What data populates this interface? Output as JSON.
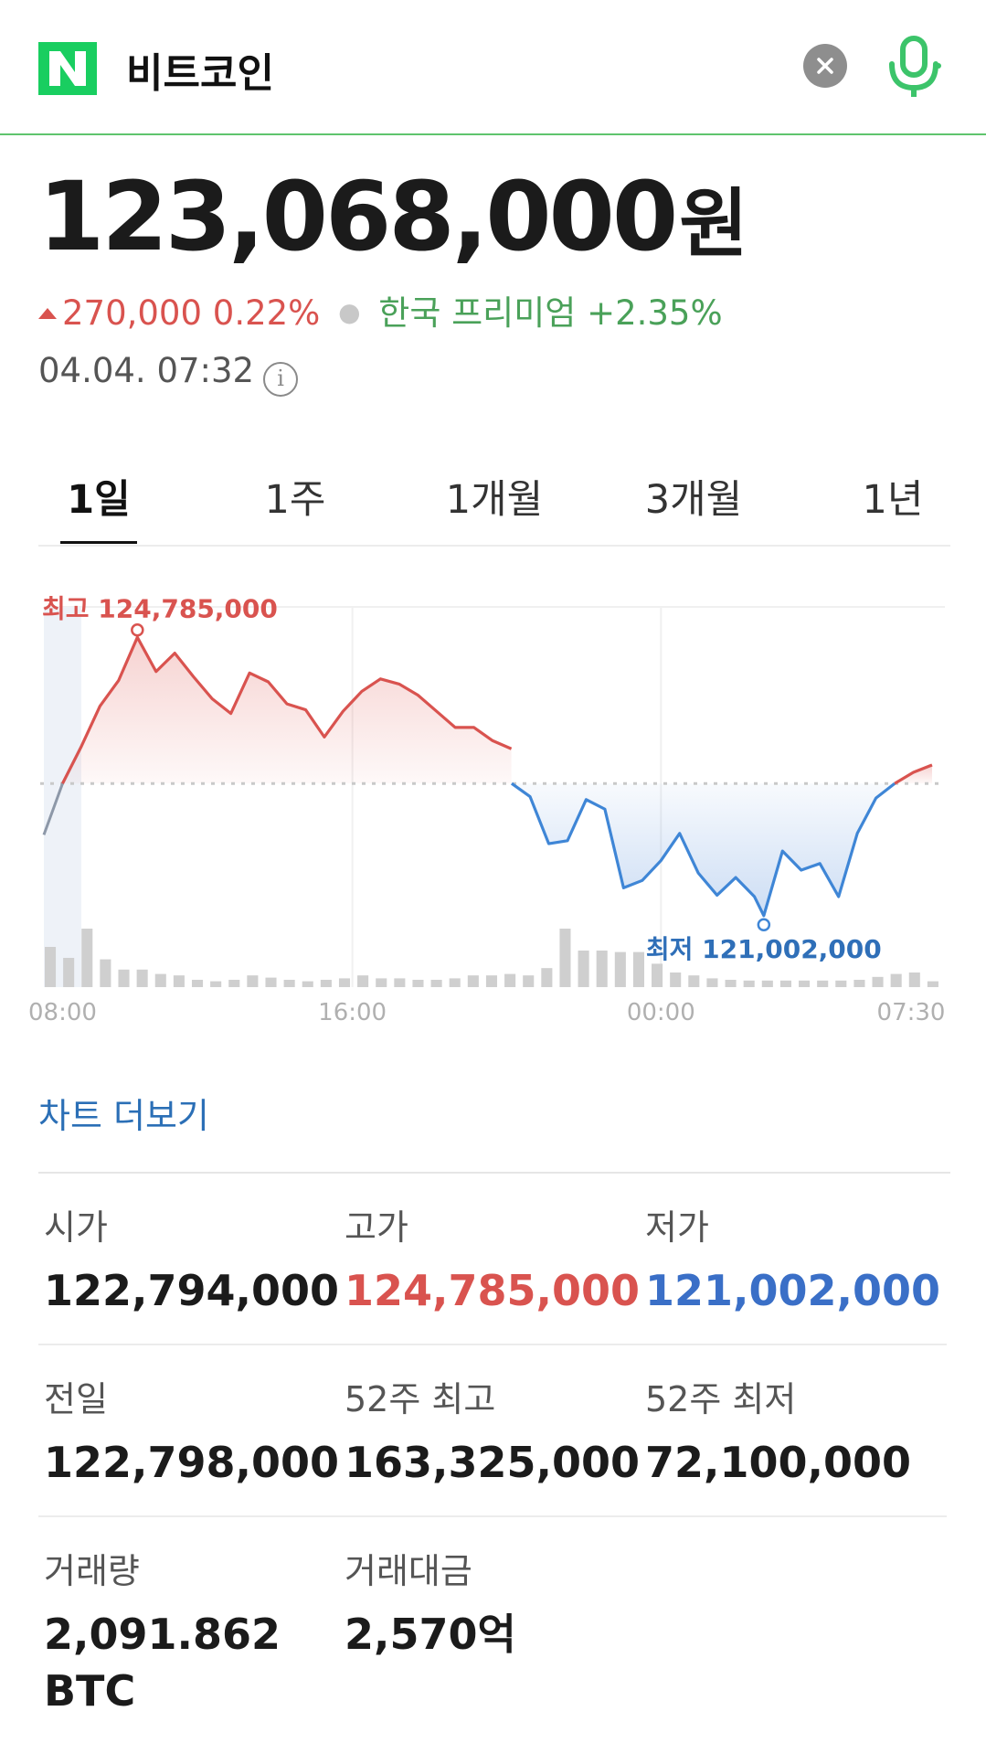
{
  "header": {
    "logo_letter": "N",
    "search_query": "비트코인",
    "brand_color": "#19ce60",
    "clear_icon": "close-icon",
    "mic_icon": "microphone-icon"
  },
  "quote": {
    "price": "123,068,000",
    "unit": "원",
    "change": "270,000",
    "change_pct": "0.22%",
    "premium_label": "한국 프리미엄",
    "premium_value": "+2.35%",
    "timestamp": "04.04. 07:32",
    "up_color": "#d9534f",
    "down_color": "#3a6fc7",
    "premium_color": "#4aa159"
  },
  "tabs": [
    {
      "label": "1일",
      "active": true
    },
    {
      "label": "1주",
      "active": false
    },
    {
      "label": "1개월",
      "active": false
    },
    {
      "label": "3개월",
      "active": false
    },
    {
      "label": "1년",
      "active": false
    }
  ],
  "chart_data": {
    "type": "area",
    "x_ticks": [
      "08:00",
      "16:00",
      "00:00",
      "07:30"
    ],
    "baseline": 122798000,
    "high_label": "최고 124,785,000",
    "low_label": "최저 121,002,000",
    "high": 124785000,
    "low": 121002000,
    "ylim": [
      120900000,
      125000000
    ],
    "price_series": [
      [
        0.0,
        122100000
      ],
      [
        0.6,
        122798000
      ],
      [
        1.2,
        123300000
      ],
      [
        1.8,
        123850000
      ],
      [
        2.4,
        124200000
      ],
      [
        3.0,
        124785000
      ],
      [
        3.6,
        124320000
      ],
      [
        4.2,
        124570000
      ],
      [
        4.8,
        124250000
      ],
      [
        5.4,
        123950000
      ],
      [
        6.0,
        123750000
      ],
      [
        6.6,
        124300000
      ],
      [
        7.2,
        124180000
      ],
      [
        7.8,
        123880000
      ],
      [
        8.4,
        123800000
      ],
      [
        9.0,
        123430000
      ],
      [
        9.6,
        123780000
      ],
      [
        10.2,
        124050000
      ],
      [
        10.8,
        124220000
      ],
      [
        11.4,
        124150000
      ],
      [
        12.0,
        124000000
      ],
      [
        12.6,
        123780000
      ],
      [
        13.2,
        123560000
      ],
      [
        13.8,
        123560000
      ],
      [
        14.4,
        123380000
      ],
      [
        15.0,
        123270000
      ],
      [
        15.01,
        122798000
      ],
      [
        15.6,
        122620000
      ],
      [
        16.2,
        121980000
      ],
      [
        16.8,
        122020000
      ],
      [
        17.4,
        122580000
      ],
      [
        18.0,
        122450000
      ],
      [
        18.6,
        121380000
      ],
      [
        19.2,
        121480000
      ],
      [
        19.8,
        121750000
      ],
      [
        20.4,
        122120000
      ],
      [
        21.0,
        121580000
      ],
      [
        21.6,
        121280000
      ],
      [
        22.2,
        121520000
      ],
      [
        22.8,
        121260000
      ],
      [
        23.1,
        121002000
      ],
      [
        23.7,
        121880000
      ],
      [
        24.3,
        121620000
      ],
      [
        24.9,
        121710000
      ],
      [
        25.5,
        121260000
      ],
      [
        26.1,
        122120000
      ],
      [
        26.7,
        122600000
      ],
      [
        27.3,
        122798000
      ],
      [
        27.9,
        122950000
      ],
      [
        28.5,
        123050000
      ]
    ],
    "volume": [
      55,
      40,
      80,
      38,
      24,
      24,
      18,
      16,
      10,
      8,
      10,
      16,
      13,
      10,
      8,
      10,
      12,
      16,
      12,
      12,
      10,
      10,
      12,
      16,
      16,
      18,
      16,
      26,
      80,
      50,
      50,
      48,
      48,
      32,
      20,
      16,
      12,
      10,
      9,
      9,
      9,
      9,
      9,
      9,
      10,
      14,
      18,
      20,
      8
    ],
    "x_domain": [
      0,
      28.5
    ]
  },
  "chart_more": "차트 더보기",
  "stats": [
    {
      "label": "시가",
      "value": "122,794,000",
      "color": "default"
    },
    {
      "label": "고가",
      "value": "124,785,000",
      "color": "red"
    },
    {
      "label": "저가",
      "value": "121,002,000",
      "color": "blue"
    },
    {
      "label": "전일",
      "value": "122,798,000",
      "color": "default"
    },
    {
      "label": "52주 최고",
      "value": "163,325,000",
      "color": "default"
    },
    {
      "label": "52주 최저",
      "value": "72,100,000",
      "color": "default"
    },
    {
      "label": "거래량",
      "value": "2,091.862",
      "value2": "BTC",
      "color": "default"
    },
    {
      "label": "거래대금",
      "value": "2,570억",
      "color": "default"
    }
  ]
}
